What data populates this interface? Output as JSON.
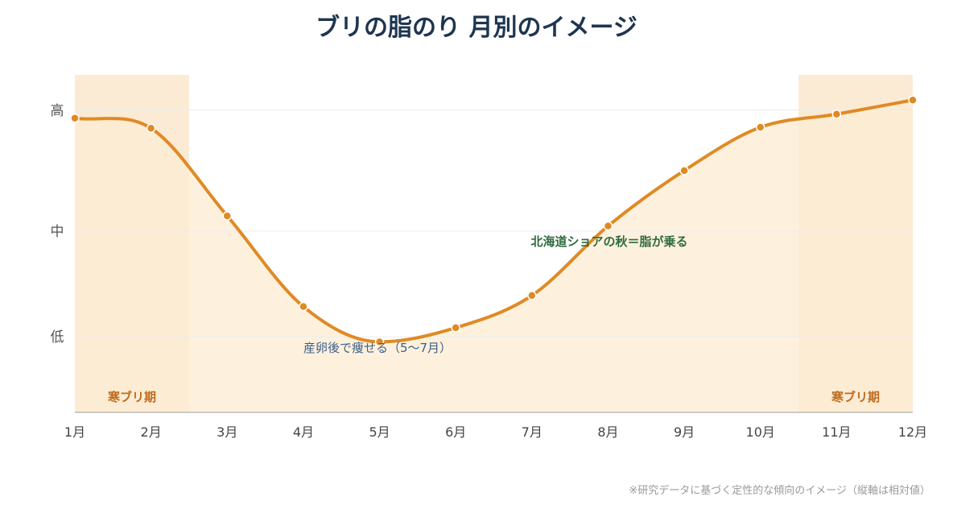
{
  "chart_data": {
    "type": "line",
    "title": "ブリの脂のり 月別のイメージ",
    "categories": [
      "1月",
      "2月",
      "3月",
      "4月",
      "5月",
      "6月",
      "7月",
      "8月",
      "9月",
      "10月",
      "11月",
      "12月"
    ],
    "series": [
      {
        "values": [
          3.42,
          3.32,
          2.45,
          1.55,
          1.2,
          1.34,
          1.66,
          2.35,
          2.9,
          3.33,
          3.46,
          3.6
        ]
      }
    ],
    "ylim": [
      0.5,
      3.85
    ],
    "y_ticks": [
      {
        "value": 1.25,
        "label": "低"
      },
      {
        "value": 2.3,
        "label": "中"
      },
      {
        "value": 3.5,
        "label": "高"
      }
    ],
    "grid": true,
    "highlight_regions": [
      {
        "from": "1月",
        "to": "2月",
        "label": "寒ブリ期"
      },
      {
        "from": "11月",
        "to": "12月",
        "label": "寒ブリ期"
      }
    ],
    "annotations": {
      "autumn": "北海道ショアの秋＝脂が乗る",
      "spawn": "産卵後で痩せる（5〜7月）"
    },
    "footnote": "※研究データに基づく定性的な傾向のイメージ（縦軸は相対値）",
    "colors": {
      "line": "#e08a24",
      "marker_stroke": "#ffffff",
      "area": "#fcecd3",
      "season_band": "#f7dbb0",
      "axis": "#bbbbbb",
      "grid": "#ececec",
      "title": "#1e3550",
      "annotation_green": "#2f6b3e",
      "annotation_blue": "#3d5f86",
      "season_label": "#c06a1c"
    }
  }
}
